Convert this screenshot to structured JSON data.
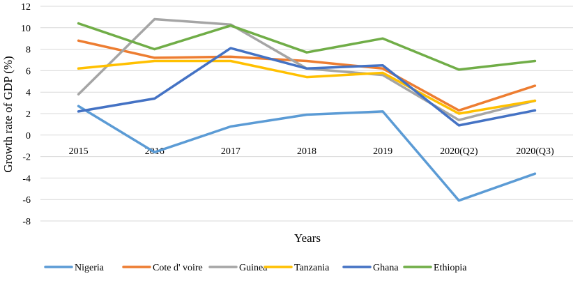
{
  "chart_data": {
    "type": "line",
    "xlabel": "Years",
    "ylabel": "Growth rate of GDP (%)",
    "ylim": [
      -8,
      12
    ],
    "y_ticks": [
      12,
      10,
      8,
      6,
      4,
      2,
      0,
      -2,
      -4,
      -6,
      -8
    ],
    "y_tick_labels": [
      "12",
      "10",
      "8",
      "6",
      "4",
      "2",
      "0",
      "-2",
      "-4",
      "-6",
      "-8"
    ],
    "grid": true,
    "legend_position": "bottom",
    "categories": [
      "2015",
      "2016",
      "2017",
      "2018",
      "2019",
      "2020(Q2)",
      "2020(Q3)"
    ],
    "series": [
      {
        "name": "Nigeria",
        "color": "#5B9BD5",
        "values": [
          2.7,
          -1.6,
          0.8,
          1.9,
          2.2,
          -6.1,
          -3.6
        ]
      },
      {
        "name": "Cote d' voire",
        "color": "#ED7D31",
        "values": [
          8.8,
          7.2,
          7.3,
          6.9,
          6.2,
          2.3,
          4.6
        ]
      },
      {
        "name": "Guinea",
        "color": "#A5A5A5",
        "values": [
          3.8,
          10.8,
          10.3,
          6.2,
          5.6,
          1.4,
          3.2
        ]
      },
      {
        "name": "Tanzania",
        "color": "#FFC000",
        "values": [
          6.2,
          6.9,
          6.9,
          5.4,
          5.8,
          2.0,
          3.2
        ]
      },
      {
        "name": "Ghana",
        "color": "#4472C4",
        "values": [
          2.2,
          3.4,
          8.1,
          6.2,
          6.5,
          0.9,
          2.3
        ]
      },
      {
        "name": "Ethiopia",
        "color": "#70AD47",
        "values": [
          10.4,
          8.0,
          10.2,
          7.7,
          9.0,
          6.1,
          6.9
        ]
      }
    ]
  }
}
